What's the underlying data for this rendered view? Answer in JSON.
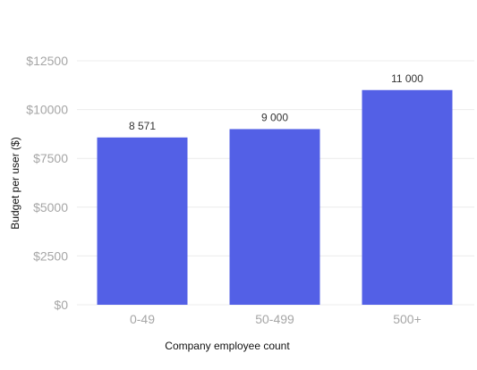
{
  "chart_data": {
    "type": "bar",
    "categories": [
      "0-49",
      "50-499",
      "500+"
    ],
    "values": [
      8571,
      9000,
      11000
    ],
    "data_labels": [
      "8 571",
      "9 000",
      "11 000"
    ],
    "xlabel": "Company employee count",
    "ylabel": "Budget per user ($)",
    "ylim": [
      0,
      12500
    ],
    "yticks": [
      0,
      2500,
      5000,
      7500,
      10000,
      12500
    ],
    "ytick_labels": [
      "$0",
      "$2500",
      "$5000",
      "$7500",
      "$10000",
      "$12500"
    ],
    "grid": true,
    "bar_color": "#5360e6",
    "legend": "none"
  }
}
